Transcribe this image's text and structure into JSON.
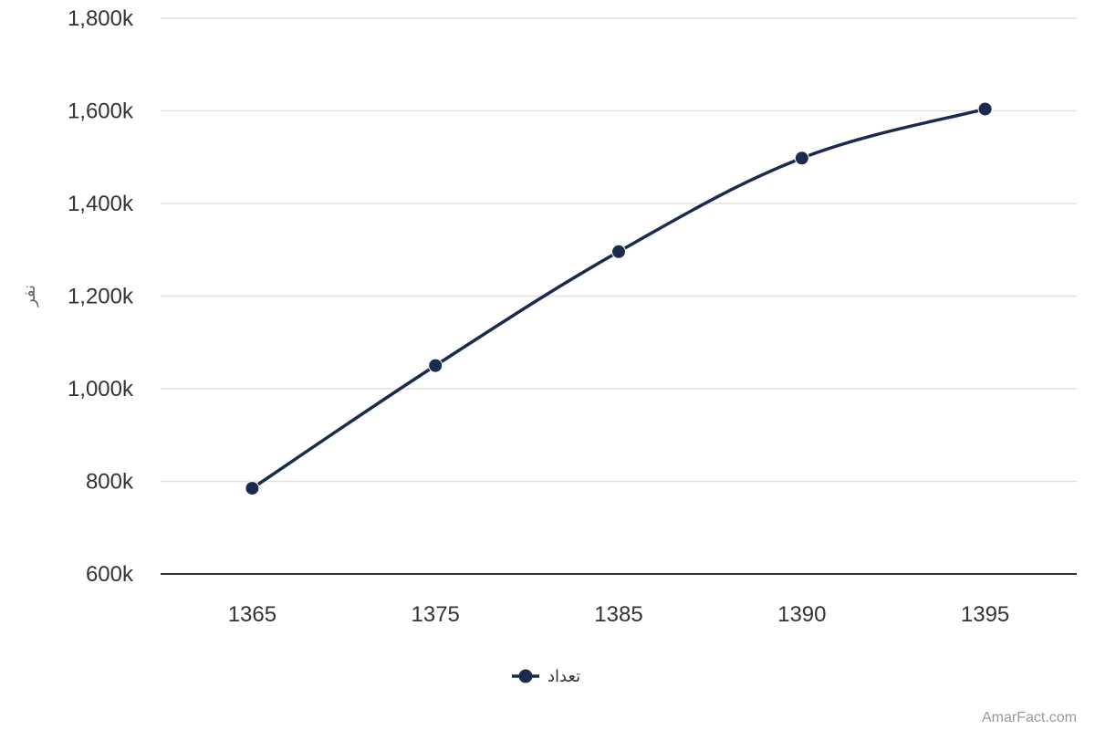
{
  "chart_data": {
    "type": "line",
    "x": [
      "1365",
      "1375",
      "1385",
      "1390",
      "1395"
    ],
    "series": [
      {
        "name": "تعداد",
        "values": [
          785000,
          1050000,
          1296000,
          1498000,
          1604000
        ],
        "color": "#1b2a4e"
      }
    ],
    "ylabel": "نفر",
    "ylim": [
      600000,
      1800000
    ],
    "yticks": [
      600000,
      800000,
      1000000,
      1200000,
      1400000,
      1600000,
      1800000
    ],
    "ytick_labels": [
      "600k",
      "800k",
      "1,000k",
      "1,200k",
      "1,400k",
      "1,600k",
      "1,800k"
    ],
    "grid": true,
    "legend_position": "bottom-center",
    "smooth": true
  },
  "credit": "AmarFact.com"
}
